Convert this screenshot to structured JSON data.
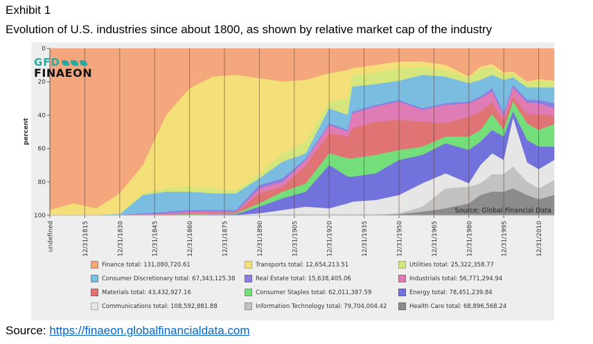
{
  "header": {
    "exhibit": "Exhibit 1",
    "title": "Evolution of U.S. industries since about 1800, as shown by relative market cap of the industry"
  },
  "logo": {
    "line1": "GFD",
    "line2": "FINAEON"
  },
  "footer": {
    "source_label": "Source: ",
    "source_link": "https://finaeon.globalfinancialdata.com"
  },
  "chart_data": {
    "type": "area",
    "stacked": true,
    "ylabel": "percent",
    "xlabel": "",
    "ylim": [
      0,
      100
    ],
    "y_inverted": true,
    "y_ticks": [
      "0",
      "20",
      "40",
      "60",
      "80",
      "100"
    ],
    "x_tick_labels": [
      "undefined",
      "12/31/1815",
      "12/31/1830",
      "12/31/1845",
      "12/31/1860",
      "12/31/1875",
      "12/31/1890",
      "12/31/1905",
      "12/31/1920",
      "12/31/1935",
      "12/31/1950",
      "12/31/1965",
      "12/31/1980",
      "12/31/1995",
      "12/31/2010"
    ],
    "annotation": "Source: Global Financial Data",
    "grid": "vertical lines at x ticks",
    "legend_position": "bottom",
    "x": [
      1800,
      1810,
      1820,
      1830,
      1840,
      1850,
      1860,
      1870,
      1880,
      1890,
      1900,
      1910,
      1920,
      1928,
      1930,
      1940,
      1950,
      1960,
      1970,
      1980,
      1985,
      1990,
      1995,
      1999,
      2005,
      2010,
      2017
    ],
    "series": [
      {
        "name": "Finance",
        "legend": "Finance total: 131,080,720.61",
        "color": "#f4a77c",
        "values": [
          97,
          93,
          96,
          87,
          70,
          40,
          24,
          17,
          16,
          18,
          20,
          19,
          15,
          13,
          12,
          10,
          8,
          8,
          10,
          17,
          11,
          9.5,
          14.5,
          14,
          20,
          18.5,
          19.5
        ]
      },
      {
        "name": "Transports",
        "legend": "Transports total: 12,654,213.51",
        "color": "#f5df78",
        "values": [
          3,
          7,
          4,
          12,
          17,
          44,
          59,
          67,
          69,
          57,
          43,
          37,
          17,
          17,
          4,
          4.5,
          4,
          3,
          3,
          1,
          1.5,
          2,
          1.5,
          1,
          0.5,
          1,
          0.5
        ]
      },
      {
        "name": "Utilities",
        "legend": "Utilities total: 25,322,358.77",
        "color": "#d5e67c",
        "values": [
          0,
          0,
          0,
          0.5,
          1,
          2,
          3,
          3,
          2,
          3,
          5,
          7,
          4,
          10,
          7,
          7,
          7.5,
          5,
          4,
          3,
          6.5,
          4.5,
          3,
          2.5,
          3,
          4,
          3.5
        ]
      },
      {
        "name": "Consumer Discretionary",
        "legend": "Consumer Discretionary total: 67,343,125.38",
        "color": "#7bbde1",
        "values": [
          0,
          0,
          0,
          0.5,
          11,
          12,
          11,
          10,
          10,
          4,
          10,
          3,
          9,
          9,
          15,
          12.5,
          11.5,
          20,
          16,
          11,
          10,
          8,
          20,
          4.5,
          7.5,
          7.5,
          9.5
        ]
      },
      {
        "name": "Real Estate",
        "legend": "Real Estate total: 15,638,405.06",
        "color": "#8b80e2",
        "values": [
          0,
          0,
          0,
          0,
          0.5,
          1,
          1,
          1,
          1,
          2,
          2,
          1,
          1,
          1,
          1,
          1,
          1,
          1,
          1,
          1,
          1,
          2,
          1.5,
          1.5,
          1.5,
          2,
          3
        ]
      },
      {
        "name": "Industrials",
        "legend": "Industrials total: 56,771,294.94",
        "color": "#e07cb5",
        "values": [
          0,
          0,
          0,
          0,
          0.5,
          0.5,
          1,
          0.5,
          0.5,
          3,
          3,
          3,
          5,
          3,
          9,
          9,
          11,
          7,
          11,
          8,
          8,
          6.5,
          3,
          5.5,
          7,
          6.5,
          4.5
        ]
      },
      {
        "name": "Materials",
        "legend": "Materials total: 43,432,927.16",
        "color": "#e07474",
        "values": [
          0,
          0,
          0,
          0,
          0,
          0.5,
          0.5,
          0.8,
          0.5,
          6,
          3,
          11,
          12,
          13,
          18,
          20,
          18,
          15,
          8,
          12,
          11,
          7,
          5.5,
          3,
          5.5,
          9.5,
          5
        ]
      },
      {
        "name": "Consumer Staples",
        "legend": "Consumer Staples total: 62,011,387.59",
        "color": "#74de7a",
        "values": [
          0,
          0,
          0,
          0,
          0,
          0,
          0.5,
          0.4,
          0.5,
          2,
          4,
          5,
          7,
          11,
          11,
          11,
          6,
          5,
          4,
          8,
          7,
          9.5,
          4,
          6,
          10,
          10,
          13.5
        ]
      },
      {
        "name": "Energy",
        "legend": "Energy total: 78,451,239.84",
        "color": "#7272dc",
        "values": [
          0,
          0,
          0,
          0,
          0,
          0,
          0,
          0.3,
          0.5,
          4,
          7,
          9,
          26,
          16,
          15,
          16,
          21,
          17,
          18,
          20,
          14,
          14,
          14,
          4,
          13.5,
          13.5,
          8
        ]
      },
      {
        "name": "Communications",
        "legend": "Communications total: 108,592,881.88",
        "color": "#e6e6e6",
        "values": [
          0,
          0,
          0,
          0,
          0,
          0,
          0,
          0,
          0,
          1,
          2.5,
          4.5,
          3.5,
          6.5,
          7.5,
          8.5,
          11,
          14,
          9,
          2,
          11,
          12.5,
          8.5,
          29,
          11.5,
          11.5,
          12
        ]
      },
      {
        "name": "Information Technology",
        "legend": "Information Technology total: 79,704,004.42",
        "color": "#c2c2c2",
        "values": [
          0,
          0,
          0,
          0,
          0,
          0,
          0,
          0,
          0,
          0,
          0.5,
          0.5,
          0.5,
          0.5,
          0.5,
          0.5,
          0.5,
          3,
          12,
          10,
          7,
          10.5,
          10.5,
          13,
          8,
          6.5,
          9
        ]
      },
      {
        "name": "Health Care",
        "legend": "Health Care total: 68,896,568.24",
        "color": "#8c8c8c",
        "values": [
          0,
          0,
          0,
          0,
          0,
          0,
          0,
          0,
          0,
          0,
          0,
          0,
          0,
          0,
          0,
          0,
          0.5,
          2,
          4,
          7,
          12,
          14,
          14,
          16,
          12,
          9.5,
          12
        ]
      }
    ]
  }
}
